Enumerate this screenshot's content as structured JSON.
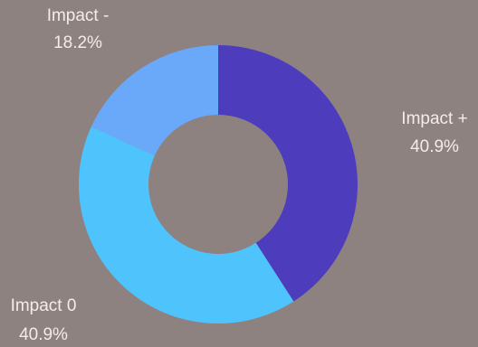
{
  "chart_data": {
    "type": "pie",
    "donut": true,
    "slices": [
      {
        "label": "Impact +",
        "percent_label": "40.9%",
        "value": 40.9,
        "color": "#4d3dbd"
      },
      {
        "label": "Impact 0",
        "percent_label": "40.9%",
        "value": 40.9,
        "color": "#4fc3fb"
      },
      {
        "label": "Impact -",
        "percent_label": "18.2%",
        "value": 18.2,
        "color": "#6aa8fa"
      }
    ],
    "background": "#8e8281",
    "label_color": "#f3ece8"
  }
}
